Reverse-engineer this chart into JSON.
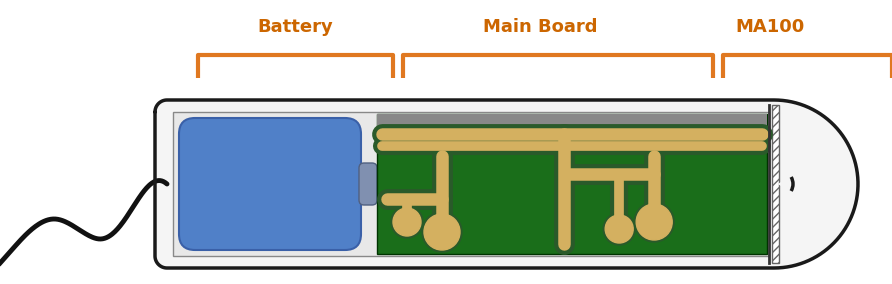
{
  "label_color": "#CC6600",
  "bracket_color": "#E07820",
  "label_battery": "Battery",
  "label_mainboard": "Main Board",
  "label_ma100": "MA100",
  "label_fontsize": 13,
  "label_fontweight": "bold",
  "bg_color": "#ffffff",
  "capsule_outline_color": "#1a1a1a",
  "capsule_fill_color": "#f5f5f5",
  "inner_bg_color": "#e8e8e8",
  "battery_fill": "#5080C8",
  "battery_edge": "#3a60a8",
  "pcb_fill": "#1a6e1a",
  "pcb_trace_color": "#D4B060",
  "pcb_trace_outline": "#2a5a2a",
  "wire_color": "#111111",
  "hatch_color": "#888888",
  "divider_color": "#444444",
  "capsule_lw": 2.5,
  "bracket_lw": 3.0
}
